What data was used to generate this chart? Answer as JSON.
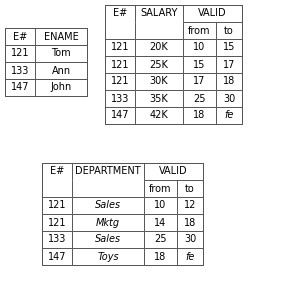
{
  "table1": {
    "headers": [
      "E#",
      "ENAME"
    ],
    "rows": [
      [
        "121",
        "Tom"
      ],
      [
        "133",
        "Ann"
      ],
      [
        "147",
        "John"
      ]
    ]
  },
  "table2": {
    "rows": [
      [
        "121",
        "20K",
        "10",
        "15"
      ],
      [
        "121",
        "25K",
        "15",
        "17"
      ],
      [
        "121",
        "30K",
        "17",
        "18"
      ],
      [
        "133",
        "35K",
        "25",
        "30"
      ],
      [
        "147",
        "42K",
        "18",
        "fe"
      ]
    ]
  },
  "table3": {
    "rows": [
      [
        "121",
        "Sales",
        "10",
        "12"
      ],
      [
        "121",
        "Mktg",
        "14",
        "18"
      ],
      [
        "133",
        "Sales",
        "25",
        "30"
      ],
      [
        "147",
        "Toys",
        "18",
        "fe"
      ]
    ]
  },
  "bg_color": "#ffffff",
  "border_color": "#555555",
  "font_size": 7.0
}
